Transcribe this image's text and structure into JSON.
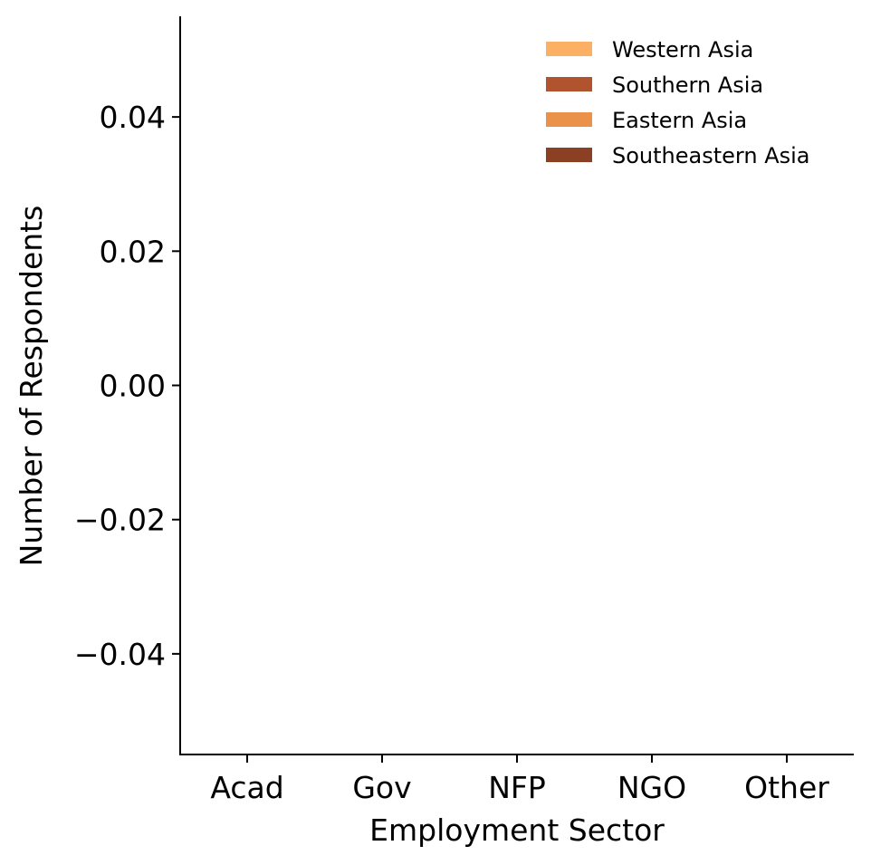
{
  "chart_data": {
    "type": "bar",
    "categories": [
      "Acad",
      "Gov",
      "NFP",
      "NGO",
      "Other"
    ],
    "series": [
      {
        "name": "Western Asia",
        "color": "#FBB063",
        "values": [
          0,
          0,
          0,
          0,
          0
        ]
      },
      {
        "name": "Southern Asia",
        "color": "#B0532E",
        "values": [
          0,
          0,
          0,
          0,
          0
        ]
      },
      {
        "name": "Eastern Asia",
        "color": "#EA924A",
        "values": [
          0,
          0,
          0,
          0,
          0
        ]
      },
      {
        "name": "Southeastern Asia",
        "color": "#8B3F23",
        "values": [
          0,
          0,
          0,
          0,
          0
        ]
      }
    ],
    "xlabel": "Employment Sector",
    "ylabel": "Number of Respondents",
    "ylim": [
      -0.055,
      0.055
    ],
    "yticks": [
      0.04,
      0.02,
      0.0,
      -0.02,
      -0.04
    ],
    "ytick_labels": [
      "0.04",
      "0.02",
      "0.00",
      "−0.02",
      "−0.04"
    ],
    "grid": false,
    "legend_position": "top-right"
  }
}
